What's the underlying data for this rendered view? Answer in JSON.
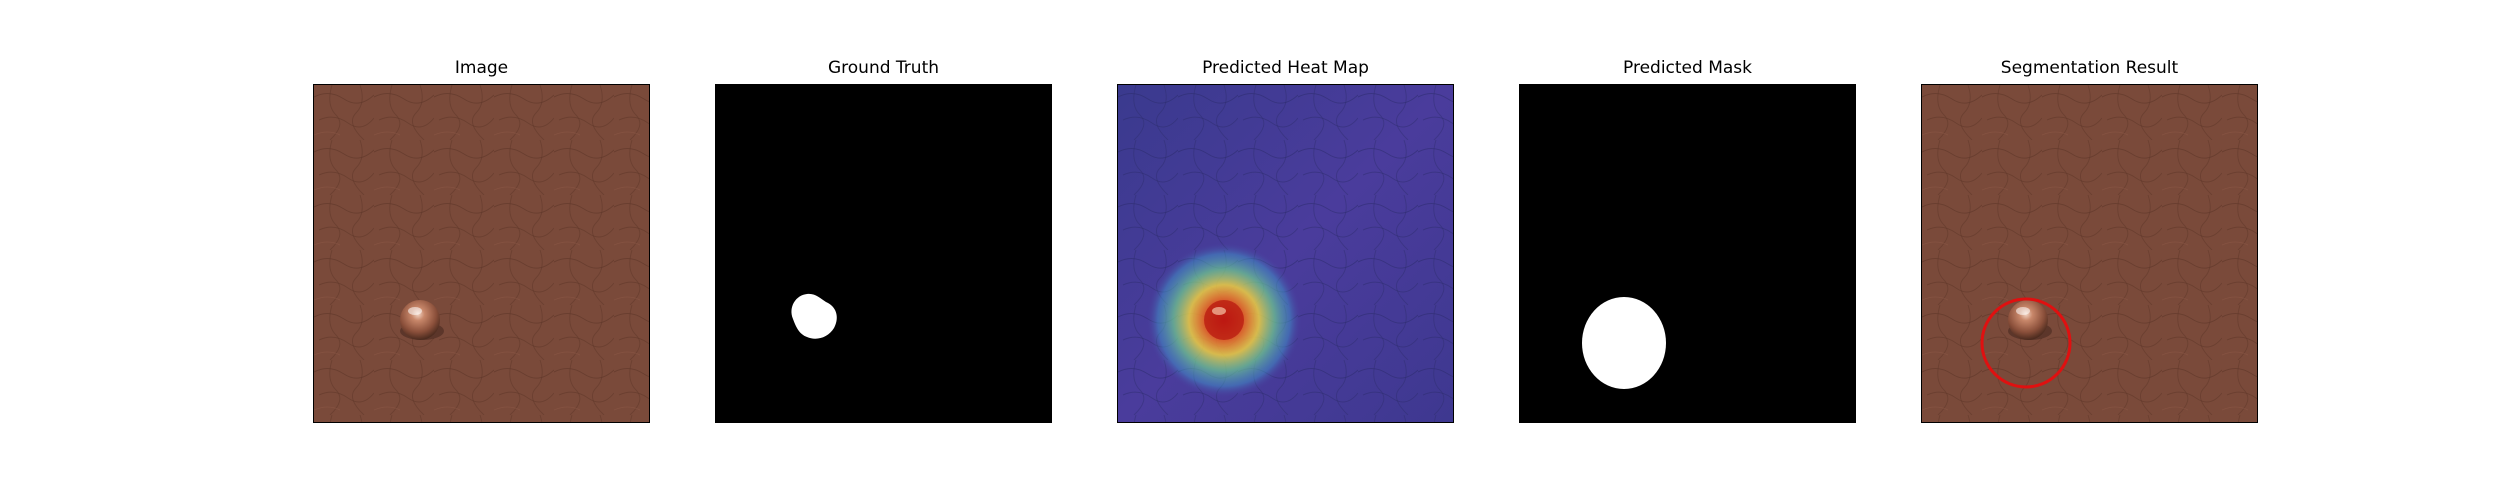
{
  "figure": {
    "panels": [
      {
        "title": "Image",
        "content": "leather-texture-with-bump"
      },
      {
        "title": "Ground Truth",
        "content": "binary-mask-small-blob"
      },
      {
        "title": "Predicted Heat Map",
        "content": "heatmap-overlay"
      },
      {
        "title": "Predicted Mask",
        "content": "binary-mask-circle"
      },
      {
        "title": "Segmentation Result",
        "content": "image-with-red-circle"
      }
    ]
  },
  "colors": {
    "leather": "#7a4a3a",
    "mask_background": "#000000",
    "mask_foreground": "#ffffff",
    "heatmap_base": "#4a3a9a",
    "result_circle": "#e01010"
  }
}
